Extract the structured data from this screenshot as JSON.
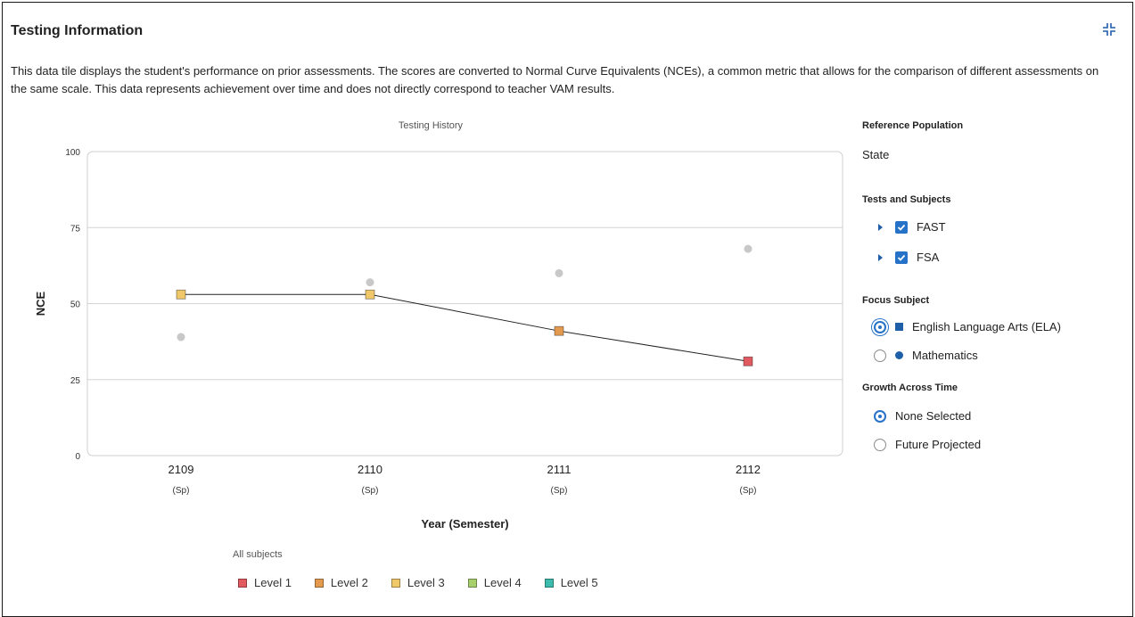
{
  "tile": {
    "title": "Testing Information",
    "description": "This data tile displays the student's performance on prior assessments. The scores are converted to Normal Curve Equivalents (NCEs), a common metric that allows for the comparison of different assessments on the same scale. This data represents achievement over time and does not directly correspond to teacher VAM results.",
    "collapse_icon": "collapse-icon"
  },
  "chart_data": {
    "type": "line",
    "title": "Testing History",
    "xlabel": "Year (Semester)",
    "ylabel": "NCE",
    "ylim": [
      0,
      100
    ],
    "yticks": [
      0,
      25,
      50,
      75,
      100
    ],
    "grid": true,
    "categories": [
      {
        "year": "2109",
        "semester": "(Sp)"
      },
      {
        "year": "2110",
        "semester": "(Sp)"
      },
      {
        "year": "2111",
        "semester": "(Sp)"
      },
      {
        "year": "2112",
        "semester": "(Sp)"
      }
    ],
    "series": [
      {
        "subject": "English Language Arts (ELA)",
        "marker": "square",
        "connected": true,
        "values": [
          53,
          53,
          41,
          31
        ],
        "levels": [
          "Level 3",
          "Level 3",
          "Level 2",
          "Level 1"
        ]
      },
      {
        "subject": "Mathematics",
        "marker": "circle",
        "connected": false,
        "color": "#c8c8c8",
        "values": [
          39,
          57,
          60,
          68
        ]
      }
    ],
    "legend": {
      "title": "All subjects",
      "placement": "bottom",
      "items": [
        {
          "label": "Level 1",
          "color": "#e05a5f"
        },
        {
          "label": "Level 2",
          "color": "#e39a4f"
        },
        {
          "label": "Level 3",
          "color": "#f0c86a"
        },
        {
          "label": "Level 4",
          "color": "#a7cf6b"
        },
        {
          "label": "Level 5",
          "color": "#3dbcae"
        }
      ]
    }
  },
  "sidebar": {
    "reference_population": {
      "heading": "Reference Population",
      "value": "State"
    },
    "tests_and_subjects": {
      "heading": "Tests and Subjects",
      "items": [
        {
          "label": "FAST",
          "checked": true
        },
        {
          "label": "FSA",
          "checked": true
        }
      ]
    },
    "focus_subject": {
      "heading": "Focus Subject",
      "options": [
        {
          "label": "English Language Arts (ELA)",
          "selected": true,
          "marker": "square"
        },
        {
          "label": "Mathematics",
          "selected": false,
          "marker": "circle"
        }
      ]
    },
    "growth_across_time": {
      "heading": "Growth Across Time",
      "options": [
        {
          "label": "None Selected",
          "selected": true
        },
        {
          "label": "Future Projected",
          "selected": false
        }
      ]
    }
  }
}
